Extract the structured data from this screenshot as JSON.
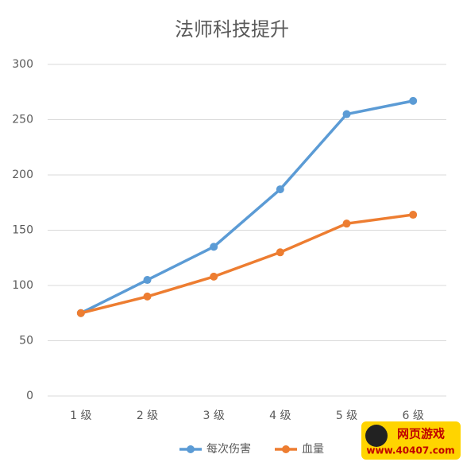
{
  "chart_data": {
    "type": "line",
    "title": "法师科技提升",
    "categories": [
      "1 级",
      "2 级",
      "3 级",
      "4 级",
      "5 级",
      "6 级"
    ],
    "series": [
      {
        "name": "每次伤害",
        "color": "#5b9bd5",
        "values": [
          75,
          105,
          135,
          187,
          255,
          267
        ]
      },
      {
        "name": "血量",
        "color": "#ed7d31",
        "values": [
          75,
          90,
          108,
          130,
          156,
          164
        ]
      }
    ],
    "ylim": [
      0,
      300
    ],
    "yticks": [
      0,
      50,
      100,
      150,
      200,
      250,
      300
    ],
    "grid": true,
    "legend": "bottom"
  },
  "watermark": {
    "name": "网页游戏",
    "url": "www.40407.com"
  }
}
